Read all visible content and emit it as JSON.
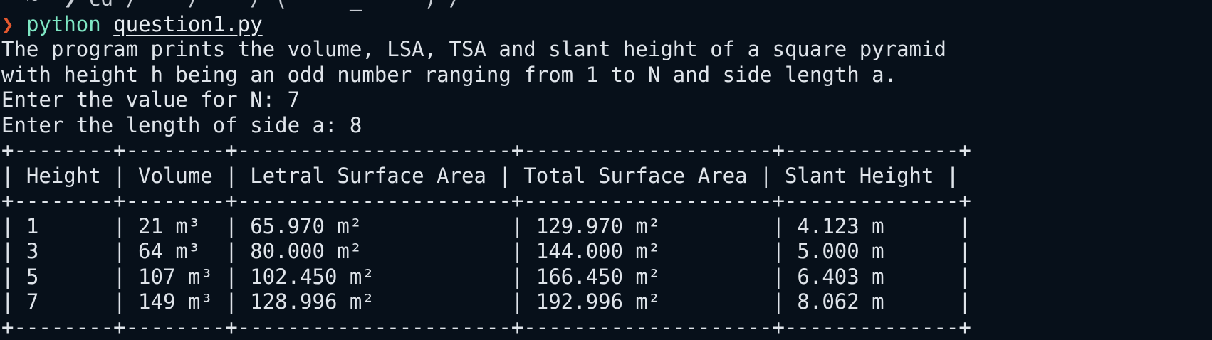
{
  "terminal": {
    "prompt_symbol": "❯",
    "command": "python",
    "argument": "question1.py",
    "clipped_top_line": "  ~  ❯ cd /    /    / (     _     ) / ",
    "output": [
      "The program prints the volume, LSA, TSA and slant height of a square pyramid",
      "with height h being an odd number ranging from 1 to N and side length a.",
      "Enter the value for N: 7",
      "Enter the length of side a: 8"
    ],
    "table_lines": [
      "+--------+--------+----------------------+--------------------+--------------+",
      "| Height | Volume | Letral Surface Area | Total Surface Area | Slant Height |",
      "+--------+--------+----------------------+--------------------+--------------+",
      "| 1      | 21 m³  | 65.970 m²            | 129.970 m²         | 4.123 m      |",
      "| 3      | 64 m³  | 80.000 m²            | 144.000 m²         | 5.000 m      |",
      "| 5      | 107 m³ | 102.450 m²           | 166.450 m²         | 6.403 m      |",
      "| 7      | 149 m³ | 128.996 m²           | 192.996 m²         | 8.062 m      |",
      "+--------+--------+----------------------+--------------------+--------------+"
    ]
  }
}
